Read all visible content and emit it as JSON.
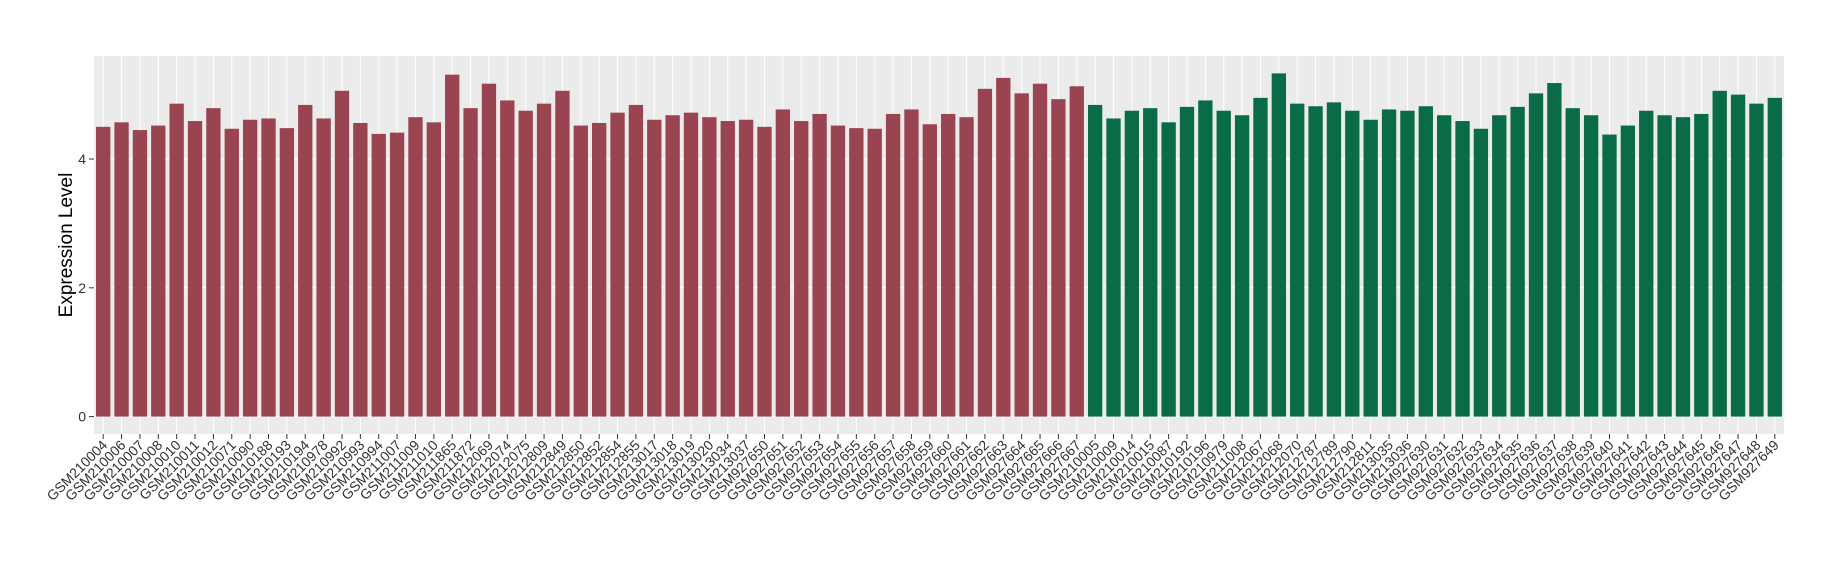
{
  "chart_data": {
    "type": "bar",
    "y_label": "Expression Level",
    "categories": [
      "GSM210004",
      "GSM210006",
      "GSM210007",
      "GSM210008",
      "GSM210010",
      "GSM210011",
      "GSM210012",
      "GSM210071",
      "GSM210090",
      "GSM210188",
      "GSM210193",
      "GSM210194",
      "GSM210978",
      "GSM210992",
      "GSM210993",
      "GSM210994",
      "GSM211007",
      "GSM211009",
      "GSM211010",
      "GSM211865",
      "GSM211872",
      "GSM212069",
      "GSM212074",
      "GSM212075",
      "GSM212809",
      "GSM212849",
      "GSM212850",
      "GSM212852",
      "GSM212854",
      "GSM212855",
      "GSM213017",
      "GSM213018",
      "GSM213019",
      "GSM213020",
      "GSM213034",
      "GSM213037",
      "GSM927650",
      "GSM927651",
      "GSM927652",
      "GSM927653",
      "GSM927654",
      "GSM927655",
      "GSM927656",
      "GSM927657",
      "GSM927658",
      "GSM927659",
      "GSM927660",
      "GSM927661",
      "GSM927662",
      "GSM927663",
      "GSM927664",
      "GSM927665",
      "GSM927666",
      "GSM927667",
      "GSM210005",
      "GSM210009",
      "GSM210014",
      "GSM210015",
      "GSM210087",
      "GSM210192",
      "GSM210196",
      "GSM210979",
      "GSM211008",
      "GSM212067",
      "GSM212068",
      "GSM212070",
      "GSM212787",
      "GSM212789",
      "GSM212790",
      "GSM212811",
      "GSM213035",
      "GSM213036",
      "GSM927630",
      "GSM927631",
      "GSM927632",
      "GSM927633",
      "GSM927634",
      "GSM927635",
      "GSM927636",
      "GSM927637",
      "GSM927638",
      "GSM927639",
      "GSM927640",
      "GSM927641",
      "GSM927642",
      "GSM927643",
      "GSM927644",
      "GSM927645",
      "GSM927646",
      "GSM927647",
      "GSM927648",
      "GSM927649"
    ],
    "values": [
      4.5,
      4.57,
      4.45,
      4.52,
      4.86,
      4.59,
      4.79,
      4.47,
      4.61,
      4.63,
      4.48,
      4.84,
      4.63,
      5.06,
      4.56,
      4.39,
      4.41,
      4.65,
      4.57,
      5.31,
      4.79,
      5.17,
      4.91,
      4.75,
      4.86,
      5.06,
      4.52,
      4.56,
      4.72,
      4.84,
      4.61,
      4.68,
      4.72,
      4.65,
      4.59,
      4.61,
      4.5,
      4.77,
      4.59,
      4.7,
      4.52,
      4.48,
      4.47,
      4.7,
      4.77,
      4.54,
      4.7,
      4.65,
      5.09,
      5.26,
      5.02,
      5.17,
      4.93,
      5.13,
      4.84,
      4.63,
      4.75,
      4.79,
      4.57,
      4.81,
      4.91,
      4.75,
      4.68,
      4.95,
      5.33,
      4.86,
      4.82,
      4.88,
      4.75,
      4.61,
      4.77,
      4.75,
      4.82,
      4.68,
      4.59,
      4.47,
      4.68,
      4.81,
      5.02,
      5.18,
      4.79,
      4.68,
      4.38,
      4.52,
      4.75,
      4.68,
      4.65,
      4.7,
      5.06,
      5.0,
      4.86,
      4.95
    ],
    "colors": [
      "#9b4451",
      "#9b4451",
      "#9b4451",
      "#9b4451",
      "#9b4451",
      "#9b4451",
      "#9b4451",
      "#9b4451",
      "#9b4451",
      "#9b4451",
      "#9b4451",
      "#9b4451",
      "#9b4451",
      "#9b4451",
      "#9b4451",
      "#9b4451",
      "#9b4451",
      "#9b4451",
      "#9b4451",
      "#9b4451",
      "#9b4451",
      "#9b4451",
      "#9b4451",
      "#9b4451",
      "#9b4451",
      "#9b4451",
      "#9b4451",
      "#9b4451",
      "#9b4451",
      "#9b4451",
      "#9b4451",
      "#9b4451",
      "#9b4451",
      "#9b4451",
      "#9b4451",
      "#9b4451",
      "#9b4451",
      "#9b4451",
      "#9b4451",
      "#9b4451",
      "#9b4451",
      "#9b4451",
      "#9b4451",
      "#9b4451",
      "#9b4451",
      "#9b4451",
      "#9b4451",
      "#9b4451",
      "#9b4451",
      "#9b4451",
      "#9b4451",
      "#9b4451",
      "#9b4451",
      "#9b4451",
      "#0a6b47",
      "#0a6b47",
      "#0a6b47",
      "#0a6b47",
      "#0a6b47",
      "#0a6b47",
      "#0a6b47",
      "#0a6b47",
      "#0a6b47",
      "#0a6b47",
      "#0a6b47",
      "#0a6b47",
      "#0a6b47",
      "#0a6b47",
      "#0a6b47",
      "#0a6b47",
      "#0a6b47",
      "#0a6b47",
      "#0a6b47",
      "#0a6b47",
      "#0a6b47",
      "#0a6b47",
      "#0a6b47",
      "#0a6b47",
      "#0a6b47",
      "#0a6b47",
      "#0a6b47",
      "#0a6b47",
      "#0a6b47",
      "#0a6b47",
      "#0a6b47",
      "#0a6b47",
      "#0a6b47",
      "#0a6b47",
      "#0a6b47",
      "#0a6b47",
      "#0a6b47",
      "#0a6b47"
    ],
    "ylim": [
      -0.27,
      5.6
    ],
    "yticks": [
      0,
      2,
      4
    ],
    "grid": true
  }
}
